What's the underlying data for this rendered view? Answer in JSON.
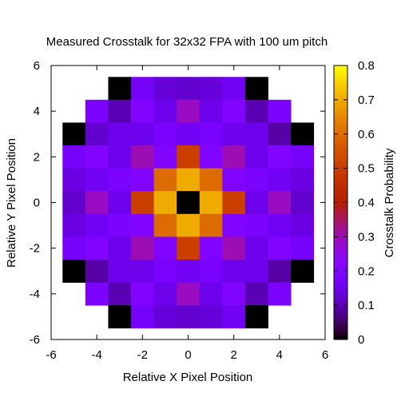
{
  "chart_data": {
    "type": "heatmap",
    "title": "Measured Crosstalk for 32x32 FPA with 100 um pitch",
    "xlabel": "Relative X Pixel Position",
    "ylabel": "Relative Y Pixel Position",
    "colorbar_label": "Crosstalk Probability",
    "xlim": [
      -6,
      6
    ],
    "ylim": [
      -6,
      6
    ],
    "x_ticks": [
      "-6",
      "-4",
      "-2",
      "0",
      "2",
      "4",
      "6"
    ],
    "y_ticks": [
      "-6",
      "-4",
      "-2",
      "0",
      "2",
      "4",
      "6"
    ],
    "colorbar_range": [
      0,
      0.8
    ],
    "colorbar_ticks": [
      "0",
      "0.1",
      "0.2",
      "0.3",
      "0.4",
      "0.5",
      "0.6",
      "0.7",
      "0.8"
    ],
    "colormap": "gnuplot",
    "x": [
      -5,
      -4,
      -3,
      -2,
      -1,
      0,
      1,
      2,
      3,
      4,
      5
    ],
    "y": [
      5,
      4,
      3,
      2,
      1,
      0,
      -1,
      -2,
      -3,
      -4,
      -5
    ],
    "grid": false,
    "values": [
      [
        null,
        null,
        0.0,
        0.17,
        0.13,
        0.12,
        0.13,
        0.16,
        0.0,
        null,
        null
      ],
      [
        null,
        0.19,
        0.1,
        0.2,
        0.15,
        0.29,
        0.15,
        0.2,
        0.1,
        0.19,
        null
      ],
      [
        0.0,
        0.12,
        0.15,
        0.15,
        0.18,
        0.16,
        0.18,
        0.15,
        0.15,
        0.09,
        0.0
      ],
      [
        0.17,
        0.2,
        0.15,
        0.3,
        0.2,
        0.5,
        0.2,
        0.3,
        0.15,
        0.2,
        0.17
      ],
      [
        0.14,
        0.16,
        0.19,
        0.2,
        0.6,
        0.7,
        0.6,
        0.2,
        0.19,
        0.16,
        0.14
      ],
      [
        0.12,
        0.29,
        0.15,
        0.5,
        0.7,
        0.0,
        0.7,
        0.5,
        0.15,
        0.29,
        0.12
      ],
      [
        0.14,
        0.16,
        0.19,
        0.2,
        0.6,
        0.7,
        0.6,
        0.2,
        0.19,
        0.16,
        0.14
      ],
      [
        0.17,
        0.2,
        0.15,
        0.3,
        0.2,
        0.5,
        0.2,
        0.3,
        0.15,
        0.2,
        0.17
      ],
      [
        0.0,
        0.09,
        0.15,
        0.15,
        0.18,
        0.16,
        0.18,
        0.15,
        0.15,
        0.09,
        0.0
      ],
      [
        null,
        0.19,
        0.1,
        0.2,
        0.15,
        0.29,
        0.15,
        0.2,
        0.1,
        0.19,
        null
      ],
      [
        null,
        null,
        0.0,
        0.17,
        0.13,
        0.12,
        0.13,
        0.16,
        0.0,
        null,
        null
      ]
    ]
  }
}
